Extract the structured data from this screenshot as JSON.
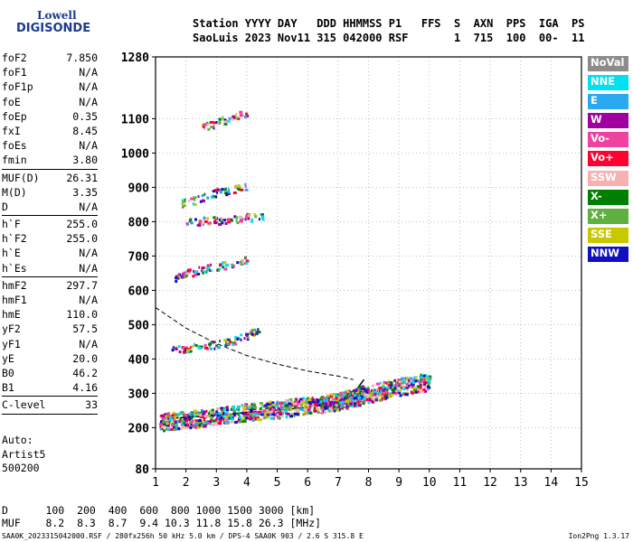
{
  "logo": {
    "line1": "Lowell",
    "line2": "DIGISONDE"
  },
  "header": {
    "line1": "Station YYYY DAY   DDD HHMMSS P1   FFS  S  AXN  PPS  IGA  PS",
    "line2": "SaoLuis 2023 Nov11 315 042000 RSF       1  715  100  00-  11"
  },
  "params": {
    "group1": [
      {
        "label": "foF2",
        "value": "7.850"
      },
      {
        "label": "foF1",
        "value": "N/A"
      },
      {
        "label": "foF1p",
        "value": "N/A"
      },
      {
        "label": "foE",
        "value": "N/A"
      },
      {
        "label": "foEp",
        "value": "0.35"
      },
      {
        "label": "fxI",
        "value": "8.45"
      },
      {
        "label": "foEs",
        "value": "N/A"
      },
      {
        "label": "fmin",
        "value": "3.80"
      }
    ],
    "group2": [
      {
        "label": "MUF(D)",
        "value": "26.31"
      },
      {
        "label": "M(D)",
        "value": "3.35"
      },
      {
        "label": "D",
        "value": "N/A"
      }
    ],
    "group3": [
      {
        "label": "h`F",
        "value": "255.0"
      },
      {
        "label": "h`F2",
        "value": "255.0"
      },
      {
        "label": "h`E",
        "value": "N/A"
      },
      {
        "label": "h`Es",
        "value": "N/A"
      }
    ],
    "group4": [
      {
        "label": "hmF2",
        "value": "297.7"
      },
      {
        "label": "hmF1",
        "value": "N/A"
      },
      {
        "label": "hmE",
        "value": "110.0"
      },
      {
        "label": "yF2",
        "value": "57.5"
      },
      {
        "label": "yF1",
        "value": "N/A"
      },
      {
        "label": "yE",
        "value": "20.0"
      },
      {
        "label": "B0",
        "value": "46.2"
      },
      {
        "label": "B1",
        "value": "4.16"
      }
    ],
    "group5": [
      {
        "label": "C-level",
        "value": "33"
      }
    ]
  },
  "auto": {
    "line1": "Auto:",
    "line2": "Artist5",
    "line3": "500200"
  },
  "legend": [
    {
      "label": "NoVal",
      "color": "#8c8c8c"
    },
    {
      "label": "NNE",
      "color": "#00e0f0"
    },
    {
      "label": "E",
      "color": "#2aa8f0"
    },
    {
      "label": "W",
      "color": "#a000a0"
    },
    {
      "label": "Vo-",
      "color": "#f040a0"
    },
    {
      "label": "Vo+",
      "color": "#ff0030"
    },
    {
      "label": "SSW",
      "color": "#f8b0b0"
    },
    {
      "label": "X-",
      "color": "#008000"
    },
    {
      "label": "X+",
      "color": "#60b040"
    },
    {
      "label": "SSE",
      "color": "#c8c800"
    },
    {
      "label": "NNW",
      "color": "#1010c0"
    }
  ],
  "footer": {
    "line1": "D      100  200  400  600  800 1000 1500 3000 [km]",
    "line2": "MUF    8.2  8.3  8.7  9.4 10.3 11.8 15.8 26.3 [MHz]"
  },
  "bottom_line": "SAA0K_2023315042000.RSF / 280fx256h 50 kHz 5.0 km / DPS-4 SAA0K 903 / 2.6 S 315.8 E",
  "version": "Ion2Png 1.3.17",
  "chart_data": {
    "type": "scatter",
    "xlim": [
      1,
      15
    ],
    "ylim": [
      80,
      1280
    ],
    "xticks": [
      "1",
      "2",
      "3",
      "4",
      "5",
      "6",
      "7",
      "8",
      "9",
      "10",
      "11",
      "12",
      "13",
      "14",
      "15"
    ],
    "yticks": [
      {
        "value": 80,
        "label": "80"
      },
      {
        "value": 200,
        "label": "200"
      },
      {
        "value": 300,
        "label": "300"
      },
      {
        "value": 400,
        "label": "400"
      },
      {
        "value": 500,
        "label": "500"
      },
      {
        "value": 600,
        "label": "600"
      },
      {
        "value": 700,
        "label": "700"
      },
      {
        "value": 800,
        "label": "800"
      },
      {
        "value": 900,
        "label": "900"
      },
      {
        "value": 1000,
        "label": "1000"
      },
      {
        "value": 1100,
        "label": "1100"
      },
      {
        "value": 1280,
        "label": "1280"
      }
    ],
    "grid": true,
    "traces": [
      {
        "name": "F2 o-trace",
        "points": [
          [
            1.1,
            218
          ],
          [
            1.5,
            222
          ],
          [
            2,
            226
          ],
          [
            2.5,
            230
          ],
          [
            3,
            236
          ],
          [
            3.5,
            242
          ],
          [
            4,
            248
          ],
          [
            4.5,
            252
          ],
          [
            5,
            256
          ],
          [
            5.5,
            262
          ],
          [
            6,
            266
          ],
          [
            6.5,
            270
          ],
          [
            7,
            278
          ],
          [
            7.5,
            290
          ],
          [
            7.8,
            305
          ]
        ]
      },
      {
        "name": "F2 x-trace",
        "points": [
          [
            6.5,
            270
          ],
          [
            7,
            280
          ],
          [
            7.5,
            290
          ],
          [
            8,
            300
          ],
          [
            8.5,
            312
          ],
          [
            9,
            322
          ],
          [
            9.5,
            330
          ],
          [
            10,
            336
          ]
        ]
      },
      {
        "name": "2nd hop",
        "points": [
          [
            1.5,
            430
          ],
          [
            2,
            432
          ],
          [
            2.5,
            440
          ],
          [
            3,
            445
          ],
          [
            3.5,
            455
          ],
          [
            4,
            470
          ],
          [
            4.4,
            490
          ]
        ]
      },
      {
        "name": "3rd hop",
        "points": [
          [
            1.6,
            640
          ],
          [
            2,
            652
          ],
          [
            2.5,
            662
          ],
          [
            3,
            672
          ],
          [
            3.5,
            680
          ],
          [
            4,
            690
          ]
        ]
      },
      {
        "name": "4th hop",
        "points": [
          [
            2,
            800
          ],
          [
            2.5,
            804
          ],
          [
            3,
            806
          ],
          [
            3.5,
            810
          ],
          [
            4,
            814
          ],
          [
            4.5,
            820
          ]
        ]
      },
      {
        "name": "5th hop",
        "points": [
          [
            1.8,
            855
          ],
          [
            2.5,
            870
          ],
          [
            3,
            888
          ],
          [
            3.5,
            895
          ],
          [
            4,
            904
          ]
        ]
      },
      {
        "name": "6th hop",
        "points": [
          [
            2.5,
            1075
          ],
          [
            3,
            1090
          ],
          [
            3.5,
            1108
          ],
          [
            4,
            1120
          ]
        ]
      }
    ],
    "profile": {
      "name": "electron density profile",
      "points": [
        [
          1.2,
          225
        ],
        [
          2,
          230
        ],
        [
          3,
          236
        ],
        [
          4,
          244
        ],
        [
          5,
          250
        ],
        [
          6,
          260
        ],
        [
          6.8,
          270
        ],
        [
          7.3,
          285
        ],
        [
          7.6,
          310
        ],
        [
          7.85,
          340
        ]
      ]
    },
    "muf_curve": {
      "name": "MUF curve",
      "points": [
        [
          1,
          550
        ],
        [
          2,
          490
        ],
        [
          3,
          445
        ],
        [
          4,
          410
        ],
        [
          5,
          385
        ],
        [
          6,
          365
        ],
        [
          7,
          350
        ],
        [
          7.5,
          340
        ]
      ]
    }
  }
}
